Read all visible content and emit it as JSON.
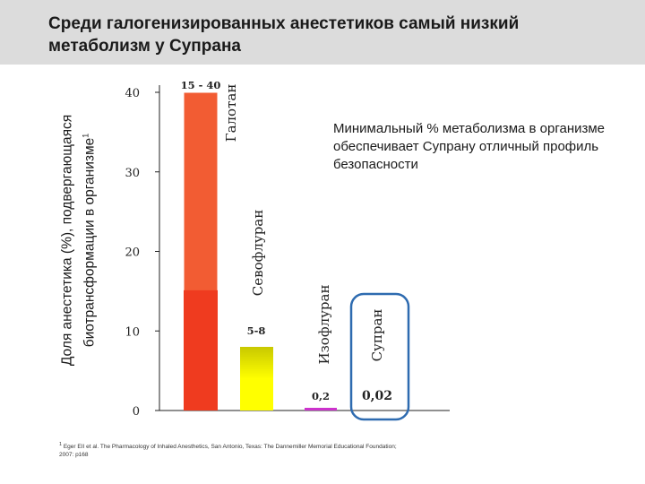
{
  "slide": {
    "title": "Среди галогенизированных анестетиков самый низкий метаболизм у Супрана",
    "callout": "Минимальный % метаболизма в организме обеспечивает Супрану отличный профиль безопасности",
    "footnote_marker": "1",
    "footnote": "Eger EII et al. The Pharmacology of Inhaled Anesthetics, San Antonio, Texas: The Dannemiller Memorial Educational Foundation; 2007: p168",
    "accent_color": "#2e6bb0"
  },
  "chart_data": {
    "type": "bar",
    "ylabel": "Доля анестетика (%), подвергающаяся биотрансформации в организме",
    "ylabel_superscript": "1",
    "ylim": [
      0,
      40
    ],
    "yticks": [
      0,
      10,
      20,
      30,
      40
    ],
    "grid": false,
    "categories": [
      "Галотан",
      "Севофлуран",
      "Изофлуран",
      "Супран"
    ],
    "ranges": [
      [
        15,
        40
      ],
      [
        5,
        8
      ],
      [
        0.2,
        0.2
      ],
      [
        0.02,
        0.02
      ]
    ],
    "value_labels": [
      "15 - 40",
      "5-8",
      "0,2",
      "0,02"
    ],
    "highlighted_category": "Супран",
    "colors": {
      "Галотан": [
        "#f0522e",
        "#f0522e"
      ],
      "Севофлуран": [
        "#ffff00",
        "#c8c800"
      ],
      "Изофлуран": [
        "#cc33cc",
        "#cc33cc"
      ],
      "Супран": [
        "#2e6bb0",
        "#2e6bb0"
      ]
    }
  }
}
